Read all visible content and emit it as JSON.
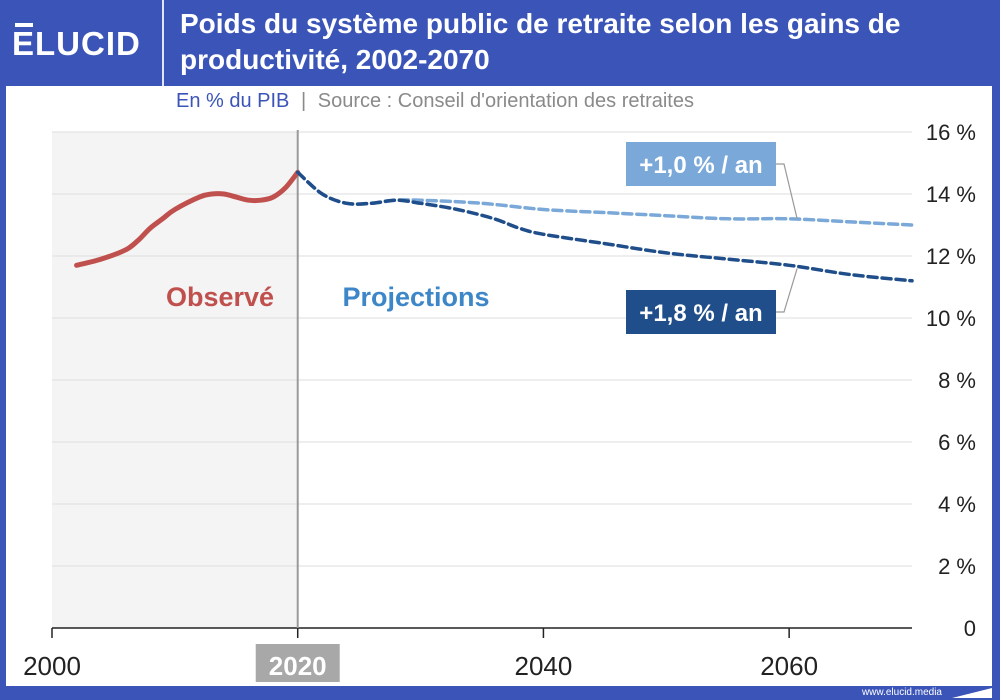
{
  "brand": {
    "logo": "ELUCID",
    "footer": "www.elucid.media"
  },
  "header": {
    "title": "Poids du système public de retraite selon les gains de productivité, 2002-2070",
    "unit": "En % du PIB",
    "separator": "|",
    "source": "Source : Conseil d'orientation des retraites"
  },
  "colors": {
    "brand": "#3b54b8",
    "observed": "#c0504d",
    "scenario_1_0": "#7aa8d8",
    "scenario_1_8": "#1f4e8a",
    "projection_label": "#3d86c8"
  },
  "chart_data": {
    "type": "line",
    "title": "Poids du système public de retraite selon les gains de productivité, 2002-2070",
    "ylabel": "En % du PIB",
    "xlim": [
      2000,
      2070
    ],
    "ylim": [
      0,
      16
    ],
    "x_ticks": [
      "2000",
      "2020",
      "2040",
      "2060"
    ],
    "y_ticks": [
      "0",
      "2 %",
      "4 %",
      "6 %",
      "8 %",
      "10 %",
      "12 %",
      "14 %",
      "16 %"
    ],
    "highlighted_x_tick": "2020",
    "grid": true,
    "annotations": {
      "observed": "Observé",
      "projections": "Projections"
    },
    "series": [
      {
        "name": "Observé",
        "style": "solid",
        "x": [
          2002,
          2004,
          2006,
          2007,
          2008,
          2009,
          2010,
          2012,
          2013,
          2014,
          2015,
          2016,
          2017,
          2018,
          2019,
          2020
        ],
        "y": [
          11.7,
          11.9,
          12.2,
          12.5,
          12.9,
          13.2,
          13.5,
          13.9,
          14.0,
          14.0,
          13.9,
          13.8,
          13.8,
          13.9,
          14.2,
          14.7
        ]
      },
      {
        "name": "+1,0 % / an",
        "style": "dashed",
        "x": [
          2020,
          2022,
          2024,
          2026,
          2028,
          2030,
          2035,
          2040,
          2045,
          2050,
          2055,
          2060,
          2065,
          2070
        ],
        "y": [
          14.7,
          14.0,
          13.7,
          13.7,
          13.8,
          13.8,
          13.7,
          13.5,
          13.4,
          13.3,
          13.2,
          13.2,
          13.1,
          13.0
        ]
      },
      {
        "name": "+1,8 % / an",
        "style": "dashed",
        "x": [
          2020,
          2022,
          2024,
          2026,
          2028,
          2030,
          2033,
          2036,
          2038,
          2040,
          2045,
          2050,
          2055,
          2060,
          2065,
          2070
        ],
        "y": [
          14.7,
          14.0,
          13.7,
          13.7,
          13.8,
          13.7,
          13.5,
          13.2,
          12.9,
          12.7,
          12.4,
          12.1,
          11.9,
          11.7,
          11.4,
          11.2
        ]
      }
    ]
  }
}
